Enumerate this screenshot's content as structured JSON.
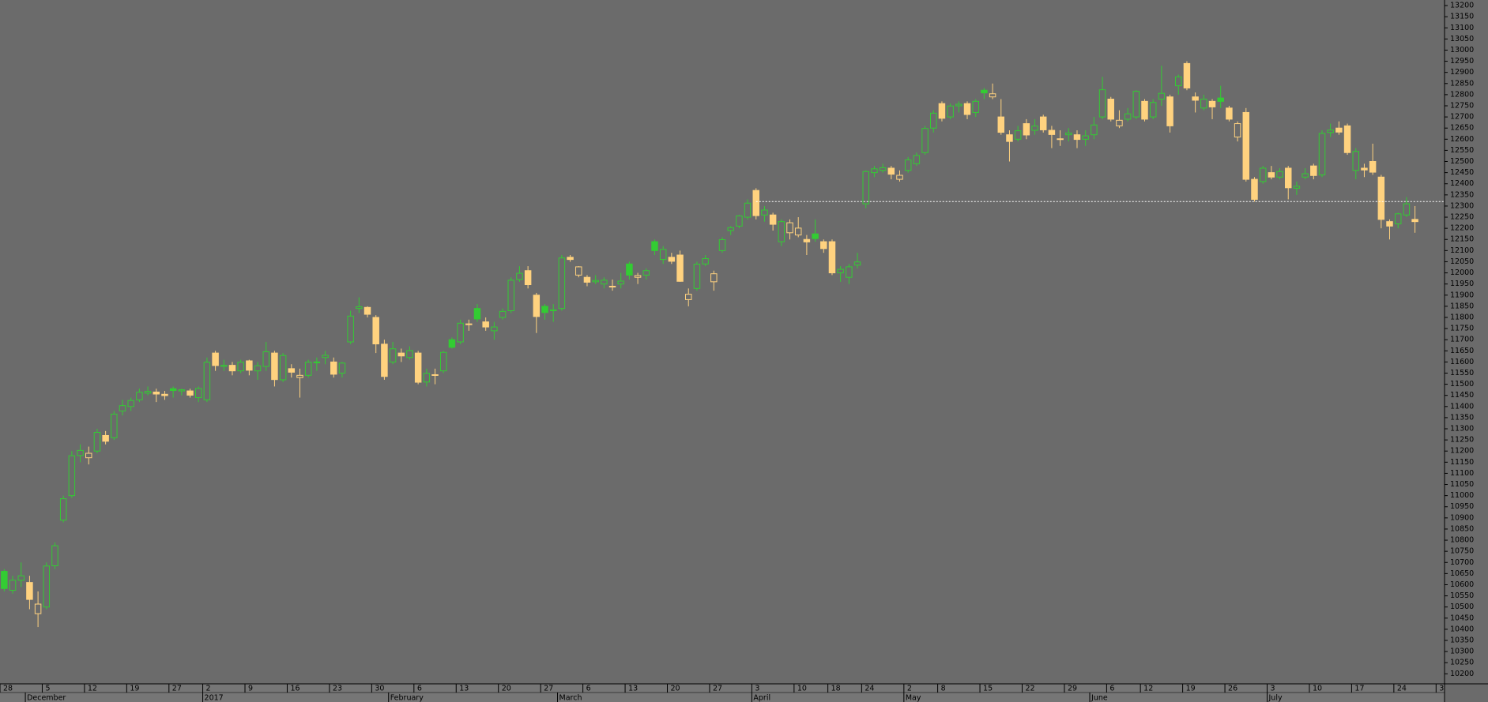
{
  "chart_data": {
    "type": "candlestick",
    "categories": [
      "28",
      null,
      null,
      null,
      null,
      "5",
      null,
      null,
      null,
      null,
      "12",
      null,
      null,
      null,
      null,
      "19",
      null,
      null,
      null,
      null,
      "27",
      null,
      null,
      null,
      "2",
      null,
      null,
      null,
      null,
      "9",
      null,
      null,
      null,
      null,
      "16",
      null,
      null,
      null,
      null,
      "23",
      null,
      null,
      null,
      null,
      "30",
      null,
      null,
      null,
      null,
      "6",
      null,
      null,
      null,
      null,
      "13",
      null,
      null,
      null,
      null,
      "20",
      null,
      null,
      null,
      null,
      "27",
      null,
      null,
      null,
      null,
      "6",
      null,
      null,
      null,
      null,
      "13",
      null,
      null,
      null,
      null,
      "20",
      null,
      null,
      null,
      null,
      "27",
      null,
      null,
      null,
      null,
      "3",
      null,
      null,
      null,
      null,
      "10",
      null,
      null,
      null,
      "18",
      null,
      null,
      null,
      "24",
      null,
      null,
      null,
      null,
      "2",
      null,
      null,
      null,
      "8",
      null,
      null,
      null,
      null,
      "15",
      null,
      null,
      null,
      null,
      "22",
      null,
      null,
      null,
      null,
      "29",
      null,
      null,
      null,
      null,
      "6",
      null,
      null,
      null,
      "12",
      null,
      null,
      null,
      null,
      "19",
      null,
      null,
      null,
      null,
      "26",
      null,
      null,
      null,
      null,
      "3",
      null,
      null,
      null,
      null,
      "10",
      null,
      null,
      null,
      null,
      "17",
      null,
      null,
      null,
      null,
      "24",
      null,
      null,
      null,
      null,
      "3"
    ],
    "months": [
      null,
      null,
      null,
      "December",
      null,
      null,
      null,
      null,
      null,
      null,
      null,
      null,
      null,
      null,
      null,
      null,
      null,
      null,
      null,
      null,
      null,
      null,
      null,
      null,
      "2017",
      null,
      null,
      null,
      null,
      null,
      null,
      null,
      null,
      null,
      null,
      null,
      null,
      null,
      null,
      null,
      null,
      null,
      null,
      null,
      null,
      null,
      "February",
      null,
      null,
      null,
      null,
      null,
      null,
      null,
      null,
      null,
      null,
      null,
      null,
      null,
      null,
      null,
      null,
      null,
      null,
      null,
      "March",
      null,
      null,
      null,
      null,
      null,
      null,
      null,
      null,
      null,
      null,
      null,
      null,
      null,
      null,
      null,
      null,
      null,
      null,
      null,
      null,
      null,
      null,
      "April",
      null,
      null,
      null,
      null,
      null,
      null,
      null,
      null,
      null,
      null,
      null,
      null,
      null,
      null,
      null,
      null,
      null,
      "May",
      null,
      null,
      null,
      null,
      null,
      null,
      null,
      null,
      null,
      null,
      null,
      null,
      null,
      null,
      null,
      null,
      null,
      null,
      null,
      null,
      null,
      "June",
      null,
      null,
      null,
      null,
      null,
      null,
      null,
      null,
      null,
      null,
      null,
      null,
      null,
      null,
      null,
      null,
      null,
      null,
      null,
      null,
      "July",
      null,
      null,
      null,
      null,
      null,
      null,
      null,
      null,
      null,
      null,
      null,
      null,
      null,
      null,
      null,
      null,
      null,
      null,
      null,
      null
    ],
    "open": [
      10660,
      10575,
      10620,
      10610,
      10470,
      10500,
      10685,
      10890,
      11000,
      11180,
      11170,
      11200,
      11270,
      11260,
      11380,
      11400,
      11430,
      11460,
      11465,
      11455,
      11480,
      11470,
      11470,
      11440,
      11430,
      11640,
      11580,
      11585,
      11560,
      11605,
      11560,
      11580,
      11640,
      11520,
      11570,
      11530,
      11540,
      11600,
      11620,
      11600,
      11550,
      11690,
      11840,
      11845,
      11800,
      11680,
      11600,
      11640,
      11620,
      11640,
      11510,
      11540,
      11560,
      11700,
      11690,
      11770,
      11840,
      11780,
      11740,
      11800,
      11830,
      11970,
      12010,
      11900,
      11850,
      11830,
      11840,
      12070,
      11990,
      11980,
      11960,
      11950,
      11940,
      11950,
      12040,
      11980,
      11990,
      12140,
      12060,
      12070,
      12080,
      11880,
      11930,
      12040,
      11960,
      12100,
      12190,
      12210,
      12250,
      12370,
      12260,
      12260,
      12140,
      12180,
      12170,
      12150,
      12175,
      12140,
      12140,
      12000,
      11980,
      12035,
      12310,
      12450,
      12460,
      12470,
      12420,
      12460,
      12490,
      12540,
      12650,
      12760,
      12700,
      12750,
      12760,
      12720,
      12820,
      12790,
      12700,
      12620,
      12600,
      12670,
      12640,
      12700,
      12640,
      12600,
      12620,
      12620,
      12600,
      12620,
      12700,
      12780,
      12660,
      12690,
      12700,
      12770,
      12700,
      12780,
      12790,
      12840,
      12940,
      12790,
      12740,
      12770,
      12785,
      12740,
      12610,
      12720,
      12420,
      12410,
      12450,
      12430,
      12470,
      12380,
      12430,
      12480,
      12440,
      12630,
      12650,
      12660,
      12460,
      12470,
      12500,
      12430,
      12230,
      12220,
      12260,
      12240,
      null,
      null,
      null
    ],
    "high": [
      10670,
      10640,
      10700,
      10640,
      10570,
      10700,
      10790,
      11000,
      11200,
      11230,
      11220,
      11300,
      11290,
      11380,
      11430,
      11440,
      11480,
      11490,
      11480,
      11470,
      11490,
      11480,
      11480,
      11490,
      11620,
      11650,
      11610,
      11600,
      11610,
      11610,
      11600,
      11690,
      11650,
      11640,
      11590,
      11570,
      11610,
      11620,
      11650,
      11620,
      11600,
      11830,
      11890,
      11850,
      11810,
      11700,
      11690,
      11660,
      11670,
      11650,
      11570,
      11570,
      11650,
      11710,
      11790,
      11790,
      11860,
      11800,
      11780,
      11840,
      11980,
      12030,
      12030,
      11910,
      11860,
      11860,
      12080,
      12080,
      12030,
      11990,
      11990,
      11980,
      11970,
      12000,
      12050,
      12000,
      12020,
      12150,
      12120,
      12090,
      12100,
      11930,
      12050,
      12080,
      12010,
      12160,
      12210,
      12260,
      12330,
      12380,
      12300,
      12270,
      12240,
      12240,
      12250,
      12170,
      12240,
      12150,
      12150,
      12030,
      12040,
      12090,
      12460,
      12480,
      12490,
      12480,
      12460,
      12520,
      12540,
      12660,
      12730,
      12770,
      12760,
      12770,
      12770,
      12780,
      12830,
      12850,
      12780,
      12640,
      12660,
      12690,
      12690,
      12710,
      12660,
      12640,
      12650,
      12640,
      12640,
      12700,
      12880,
      12790,
      12730,
      12740,
      12820,
      12780,
      12780,
      12930,
      12800,
      12890,
      12950,
      12810,
      12800,
      12780,
      12840,
      12750,
      12680,
      12740,
      12430,
      12480,
      12480,
      12470,
      12480,
      12410,
      12470,
      12490,
      12640,
      12670,
      12680,
      12670,
      12560,
      12490,
      12580,
      12440,
      12240,
      12270,
      12340,
      12300,
      null,
      null,
      null
    ],
    "low": [
      10570,
      10560,
      10590,
      10490,
      10410,
      10490,
      10670,
      10880,
      10990,
      11150,
      11140,
      11190,
      11230,
      11250,
      11360,
      11380,
      11420,
      11450,
      11420,
      11430,
      11440,
      11450,
      11440,
      11420,
      11420,
      11560,
      11560,
      11540,
      11550,
      11540,
      11520,
      11560,
      11490,
      11510,
      11530,
      11440,
      11530,
      11560,
      11590,
      11530,
      11530,
      11680,
      11820,
      11800,
      11640,
      11520,
      11590,
      11600,
      11610,
      11500,
      11490,
      11500,
      11550,
      11660,
      11680,
      11740,
      11780,
      11740,
      11700,
      11790,
      11820,
      11960,
      11930,
      11730,
      11790,
      11780,
      11830,
      12050,
      11980,
      11940,
      11950,
      11930,
      11920,
      11930,
      11970,
      11950,
      11970,
      12080,
      12040,
      12040,
      11960,
      11850,
      11920,
      12030,
      11920,
      12090,
      12170,
      12200,
      12240,
      12240,
      12230,
      12190,
      12120,
      12150,
      12160,
      12080,
      12140,
      12090,
      11990,
      11960,
      11950,
      12020,
      12290,
      12430,
      12450,
      12420,
      12410,
      12450,
      12480,
      12530,
      12630,
      12680,
      12690,
      12720,
      12690,
      12700,
      12780,
      12780,
      12620,
      12500,
      12590,
      12600,
      12620,
      12630,
      12560,
      12570,
      12590,
      12560,
      12570,
      12600,
      12690,
      12680,
      12650,
      12680,
      12690,
      12680,
      12690,
      12750,
      12630,
      12800,
      12820,
      12720,
      12730,
      12690,
      12740,
      12680,
      12590,
      12410,
      12320,
      12400,
      12420,
      12420,
      12330,
      12350,
      12420,
      12420,
      12430,
      12610,
      12620,
      12530,
      12420,
      12430,
      12440,
      12200,
      12150,
      12200,
      12250,
      12180,
      null,
      null,
      null
    ],
    "close": [
      10583,
      10620,
      10640,
      10534,
      10513,
      10684,
      10775,
      10986,
      11179,
      11203,
      11190,
      11284,
      11244,
      11366,
      11404,
      11427,
      11464,
      11468,
      11456,
      11449,
      11472,
      11475,
      11451,
      11481,
      11599,
      11584,
      11585,
      11560,
      11599,
      11563,
      11583,
      11646,
      11521,
      11629,
      11554,
      11540,
      11599,
      11599,
      11630,
      11545,
      11595,
      11806,
      11848,
      11814,
      11681,
      11535,
      11659,
      11627,
      11651,
      11509,
      11549,
      11543,
      11643,
      11666,
      11774,
      11771,
      11793,
      11757,
      11757,
      11827,
      11967,
      11998,
      11947,
      11804,
      11822,
      11834,
      12067,
      12060,
      12027,
      11958,
      11966,
      11967,
      11937,
      11963,
      11990,
      11988,
      12010,
      12100,
      12105,
      12052,
      11962,
      11904,
      12039,
      12064,
      11996,
      12149,
      12203,
      12256,
      12313,
      12257,
      12282,
      12218,
      12230,
      12225,
      12201,
      12139,
      12154,
      12109,
      12000,
      12016,
      12027,
      12049,
      12455,
      12467,
      12472,
      12443,
      12438,
      12507,
      12527,
      12648,
      12717,
      12694,
      12749,
      12757,
      12711,
      12770,
      12808,
      12804,
      12631,
      12590,
      12638,
      12619,
      12659,
      12642,
      12621,
      12602,
      12628,
      12599,
      12615,
      12664,
      12822,
      12690,
      12685,
      12714,
      12815,
      12690,
      12765,
      12806,
      12660,
      12880,
      12830,
      12775,
      12780,
      12745,
      12770,
      12690,
      12670,
      12420,
      12330,
      12470,
      12430,
      12455,
      12382,
      12389,
      12445,
      12437,
      12626,
      12641,
      12632,
      12540,
      12545,
      12462,
      12452,
      12240,
      12210,
      12265,
      12310,
      12230,
      null,
      null,
      null
    ],
    "up_color": "#33cc33",
    "down_color": "#ffd27f",
    "ylim": [
      10155,
      13225
    ],
    "yticks": [
      10200,
      10250,
      10300,
      10350,
      10400,
      10450,
      10500,
      10550,
      10600,
      10650,
      10700,
      10750,
      10800,
      10850,
      10900,
      10950,
      11000,
      11050,
      11100,
      11150,
      11200,
      11250,
      11300,
      11350,
      11400,
      11450,
      11500,
      11550,
      11600,
      11650,
      11700,
      11750,
      11800,
      11850,
      11900,
      11950,
      12000,
      12050,
      12100,
      12150,
      12200,
      12250,
      12300,
      12350,
      12400,
      12450,
      12500,
      12550,
      12600,
      12650,
      12700,
      12750,
      12800,
      12850,
      12900,
      12950,
      13000,
      13050,
      13100,
      13150,
      13200
    ],
    "reference_line": {
      "value": 12320,
      "start": 89,
      "color": "#ffffff"
    },
    "grid": false
  }
}
